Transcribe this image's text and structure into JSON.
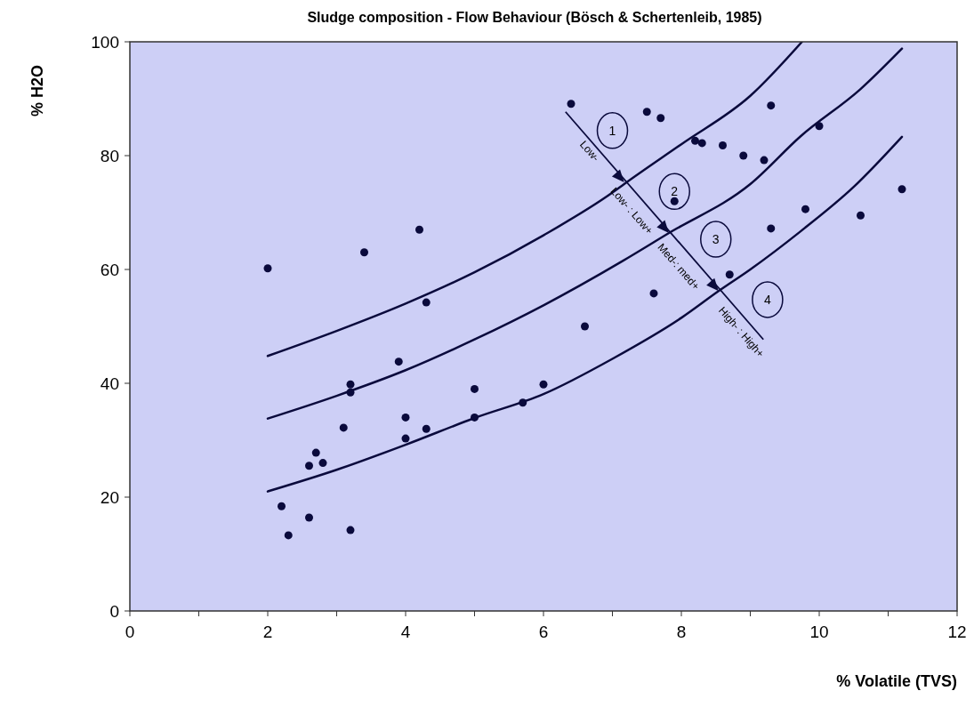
{
  "chart_data": {
    "type": "scatter",
    "title": "Sludge composition - Flow Behaviour (Bösch & Schertenleib, 1985)",
    "xlabel": "% Volatile (TVS)",
    "ylabel": "% H2O",
    "xlim": [
      0,
      12
    ],
    "ylim": [
      0,
      100
    ],
    "xticks": [
      0,
      {
        "value": 1,
        "label": null
      },
      2,
      {
        "value": 3,
        "label": null
      },
      4,
      {
        "value": 5,
        "label": null
      },
      6,
      {
        "value": 7,
        "label": null
      },
      8,
      {
        "value": 9,
        "label": null
      },
      10,
      {
        "value": 11,
        "label": null
      },
      12
    ],
    "yticks": [
      0,
      20,
      40,
      60,
      80,
      100
    ],
    "grid": false,
    "line_style": "solid",
    "series": [
      {
        "marker": "circle",
        "color": "#0a0a3c",
        "x": [
          2.0,
          4.2,
          3.4,
          4.3,
          3.9,
          3.2,
          3.2,
          5.0,
          6.0,
          5.7,
          6.6,
          3.1,
          4.0,
          4.0,
          4.3,
          5.0,
          2.7,
          2.6,
          2.8,
          2.2,
          2.6,
          2.3,
          3.2,
          6.4,
          7.5,
          7.7,
          9.3,
          10.0,
          8.2,
          8.3,
          8.6,
          8.9,
          9.2,
          7.9,
          9.8,
          9.3,
          8.7,
          7.6,
          11.2,
          10.6
        ],
        "values": [
          60.2,
          67,
          63,
          54.2,
          43.8,
          39.8,
          38.4,
          39,
          39.8,
          36.6,
          50,
          32.2,
          34,
          30.3,
          32,
          34,
          27.8,
          25.5,
          26,
          18.4,
          16.4,
          13.3,
          14.2,
          89.1,
          87.7,
          86.6,
          88.8,
          85.2,
          82.6,
          82.2,
          81.8,
          80,
          79.2,
          72,
          70.6,
          67.2,
          59.1,
          55.8,
          74.1,
          69.5
        ]
      },
      {
        "type": "line",
        "color": "#0a0a3c",
        "x": [
          2,
          3,
          4,
          5,
          6,
          7,
          7.17,
          8,
          9,
          9.75
        ],
        "values": [
          44.8,
          49.2,
          54,
          59.5,
          66,
          73.5,
          75,
          82,
          90.5,
          100
        ]
      },
      {
        "type": "line",
        "color": "#0a0a3c",
        "x": [
          2,
          3,
          4,
          5,
          6,
          7.15,
          7.82,
          9,
          9.73,
          10.6,
          11.2
        ],
        "values": [
          33.8,
          37.8,
          42.3,
          47.7,
          53.7,
          61.5,
          66.4,
          75,
          83.4,
          91.7,
          98.8
        ]
      },
      {
        "type": "line",
        "color": "#0a0a3c",
        "x": [
          2,
          3,
          4,
          5,
          6,
          7,
          8,
          8.54,
          9,
          9.73,
          10.5,
          11.2
        ],
        "values": [
          21,
          24.8,
          29.2,
          33.9,
          38.1,
          44.3,
          51.5,
          56.2,
          60,
          66.7,
          74.5,
          83.3
        ]
      }
    ],
    "annotations": [
      "1",
      "2",
      "3",
      "4",
      "Low-",
      "Low- : Low+",
      "Med-: med+",
      "High- : High+"
    ]
  }
}
